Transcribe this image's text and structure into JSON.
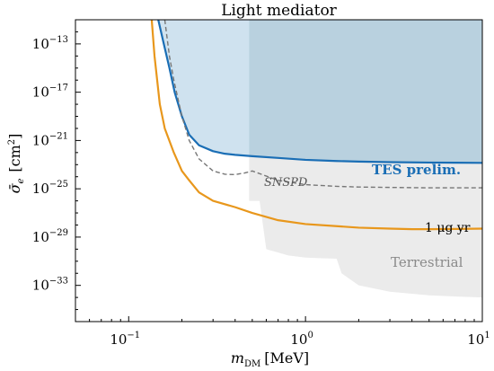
{
  "chart_data": {
    "type": "line",
    "title": "Light mediator",
    "xlabel": "m_DM [MeV]",
    "ylabel": "σ̄_e [cm²]",
    "xscale": "log",
    "yscale": "log",
    "xlim": [
      0.05,
      10
    ],
    "ylim": [
      1e-36,
      1e-11
    ],
    "xticks": [
      {
        "value": 0.1,
        "base": "10",
        "exp": "−1"
      },
      {
        "value": 1,
        "base": "10",
        "exp": "0"
      },
      {
        "value": 10,
        "base": "10",
        "exp": "1"
      }
    ],
    "yticks": [
      {
        "value": 1e-13,
        "base": "10",
        "exp": "−13"
      },
      {
        "value": 1e-17,
        "base": "10",
        "exp": "−17"
      },
      {
        "value": 1e-21,
        "base": "10",
        "exp": "−21"
      },
      {
        "value": 1e-25,
        "base": "10",
        "exp": "−25"
      },
      {
        "value": 1e-29,
        "base": "10",
        "exp": "−29"
      },
      {
        "value": 1e-33,
        "base": "10",
        "exp": "−33"
      }
    ],
    "grid": false,
    "colors": {
      "tes": "#1a6eb5",
      "tes_fill_light": "#cfe2ef",
      "tes_fill_dark": "#b9d1df",
      "exposure": "#e8971c",
      "snspd": "#777777",
      "terrestrial": "#ebebeb",
      "terrestrial_text": "#8a8a8a"
    },
    "series": [
      {
        "name": "TES prelim.",
        "style": "solid",
        "x": [
          0.147,
          0.158,
          0.17,
          0.182,
          0.2,
          0.22,
          0.25,
          0.3,
          0.35,
          0.4,
          0.5,
          0.7,
          1.0,
          1.5,
          2.0,
          3.0,
          5.0,
          7.0,
          10.0
        ],
        "y": [
          1e-11,
          1e-13,
          1e-15,
          1e-17,
          1e-19,
          3e-21,
          4e-22,
          1.3e-22,
          8e-23,
          6.5e-23,
          5e-23,
          3.6e-23,
          2.5e-23,
          2e-23,
          1.8e-23,
          1.6e-23,
          1.5e-23,
          1.45e-23,
          1.4e-23
        ]
      },
      {
        "name": "SNSPD",
        "style": "dashed",
        "x": [
          0.16,
          0.17,
          0.18,
          0.2,
          0.22,
          0.25,
          0.3,
          0.35,
          0.4,
          0.45,
          0.5,
          0.7,
          1.0,
          1.5,
          2.0,
          3.0,
          5.0,
          10.0
        ],
        "y": [
          1e-11,
          1e-14,
          1e-16,
          1e-19,
          1e-21,
          3e-23,
          3e-24,
          1.6e-24,
          1.5e-24,
          2e-24,
          3e-24,
          5e-25,
          2.2e-25,
          1.6e-25,
          1.4e-25,
          1.3e-25,
          1.2e-25,
          1.2e-25
        ]
      },
      {
        "name": "1 μg yr",
        "style": "solid",
        "x": [
          0.135,
          0.14,
          0.15,
          0.16,
          0.18,
          0.2,
          0.22,
          0.25,
          0.3,
          0.4,
          0.5,
          0.7,
          1.0,
          1.5,
          2.0,
          3.0,
          4.0,
          5.0,
          7.0,
          10.0
        ],
        "y": [
          1e-11,
          1e-14,
          1e-18,
          1e-20,
          1e-22,
          3e-24,
          5e-25,
          5e-26,
          1e-26,
          3e-27,
          1e-27,
          2.5e-28,
          1.2e-28,
          8e-29,
          6e-29,
          5e-29,
          4.5e-29,
          4.5e-29,
          4.7e-29,
          5e-29
        ]
      }
    ],
    "regions": [
      {
        "name": "Terrestrial",
        "x": [
          0.48,
          0.48,
          0.55,
          0.6,
          0.8,
          1.0,
          1.2,
          1.5,
          1.6,
          2.0,
          3.0,
          5.0,
          7.0,
          10.0
        ],
        "y": [
          1e-29,
          1e-26,
          1e-26,
          1e-30,
          3e-31,
          2e-31,
          1.8e-31,
          1.6e-31,
          1e-32,
          1e-33,
          3e-34,
          1.5e-34,
          1.2e-34,
          1e-34
        ]
      }
    ],
    "annotations": {
      "tes": "TES prelim.",
      "snspd": "SNSPD",
      "exposure": "1 μg yr",
      "terrestrial": "Terrestrial"
    }
  }
}
